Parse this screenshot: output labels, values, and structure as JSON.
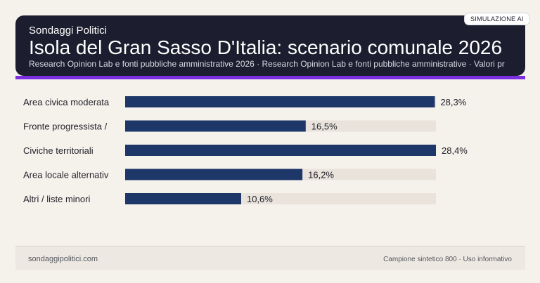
{
  "header": {
    "brand": "Sondaggi Politici",
    "title": "Isola del Gran Sasso D'Italia: scenario comunale 2026",
    "source": "Research Opinion Lab e fonti pubbliche amministrative 2026 · Research Opinion Lab e fonti pubbliche amministrative · Valori pr",
    "badge": "SIMULAZIONE AI"
  },
  "footer": {
    "site": "sondaggipolitici.com",
    "note": "Campione sintetico 800 · Uso informativo"
  },
  "colors": {
    "bar": "#1d3768",
    "track": "#e9e3dc",
    "accent": "#7b2fe0",
    "header_bg": "#1c1d2e"
  },
  "chart_data": {
    "type": "bar",
    "orientation": "horizontal",
    "categories": [
      "Area civica moderata",
      "Fronte progressista /",
      "Civiche territoriali",
      "Area locale alternativ",
      "Altri / liste minori"
    ],
    "values": [
      28.3,
      16.5,
      28.4,
      16.2,
      10.6
    ],
    "value_labels": [
      "28,3%",
      "16,5%",
      "28,4%",
      "16,2%",
      "10,6%"
    ],
    "xlim": [
      0,
      28.4
    ],
    "grid": false
  }
}
